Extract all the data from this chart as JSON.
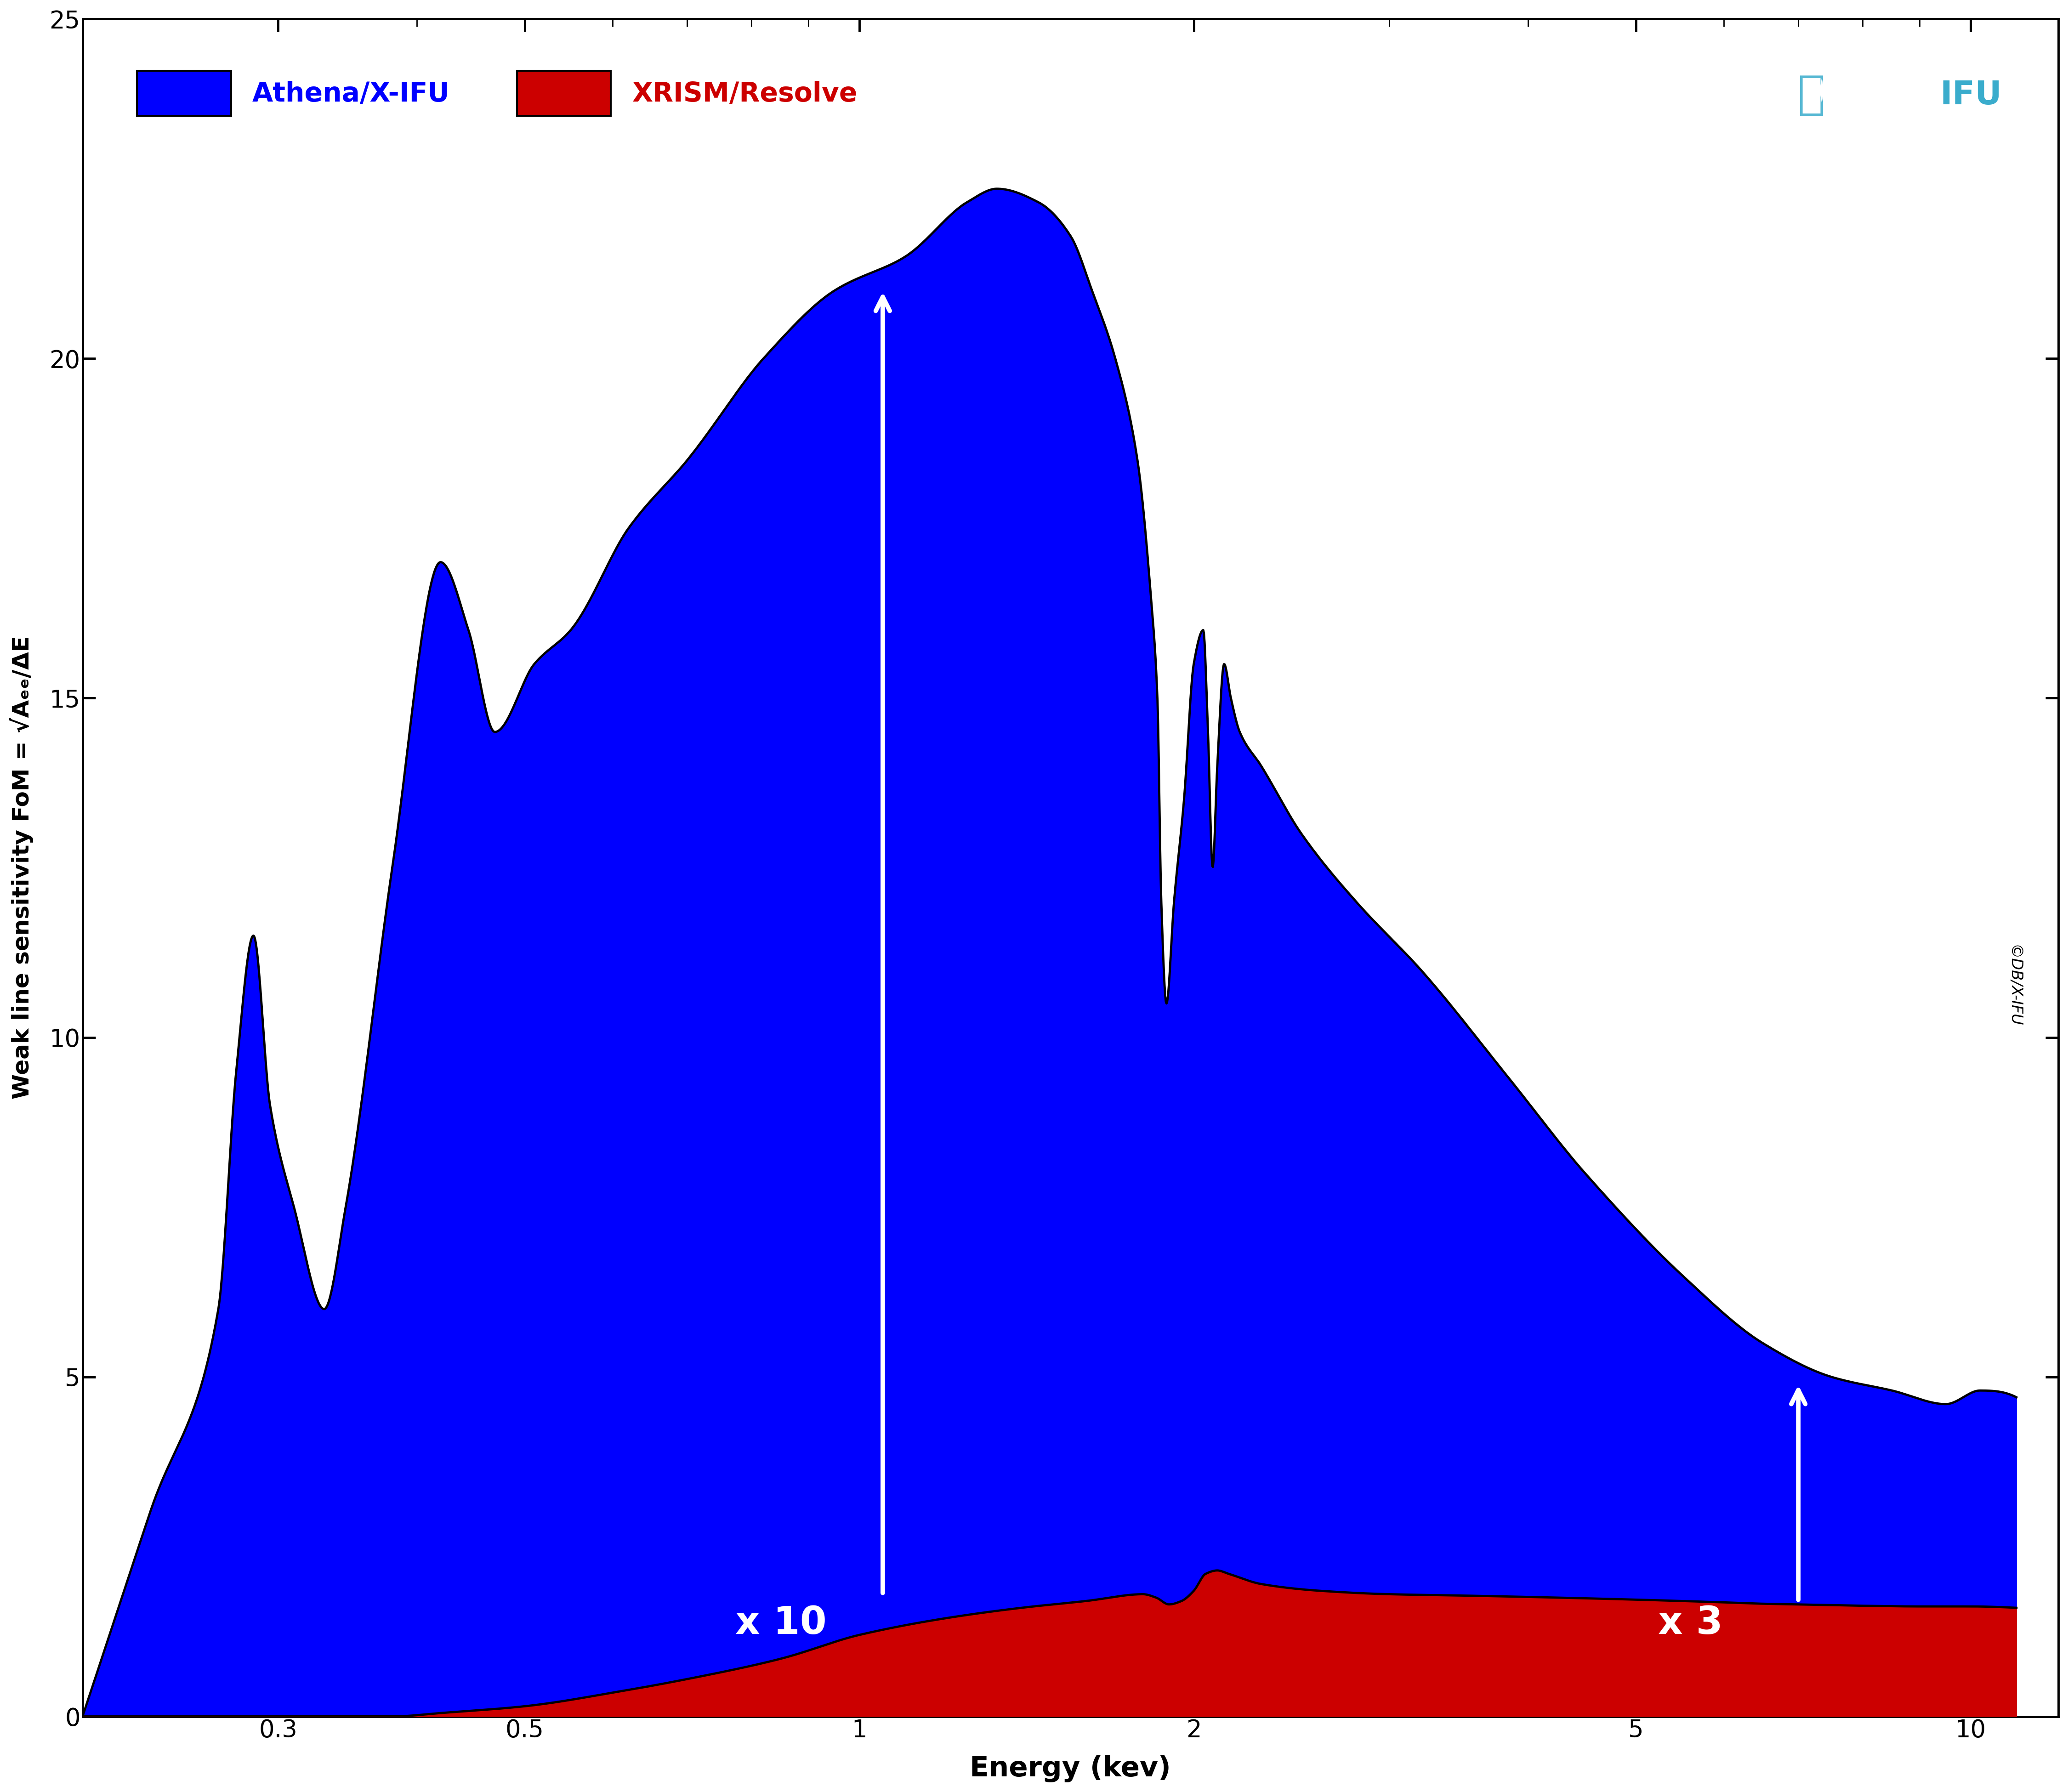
{
  "xlabel": "Energy (kev)",
  "ylabel": "Weak line sensitivity FoM = √Aₑₑ/ΔE",
  "xlim": [
    0.2,
    12.0
  ],
  "ylim": [
    0,
    25
  ],
  "yticks": [
    0,
    5,
    10,
    15,
    20,
    25
  ],
  "xticks": [
    0.3,
    0.5,
    1.0,
    2.0,
    5.0,
    10.0
  ],
  "xticklabels": [
    "0.3",
    "0.5",
    "1",
    "2",
    "5",
    "10"
  ],
  "blue_color": "#0000FF",
  "red_color": "#CC0000",
  "black_outline": "#000000",
  "legend_athena_label": "Athena/X-IFU",
  "legend_xrism_label": "XRISM/Resolve",
  "annotation1_text": "x 10",
  "annotation2_text": "x 3",
  "copyright_text": "©DB/X-IFU",
  "ifu_logo_color": "#3AACCC",
  "tickfontsize": 38,
  "labelfontsize": 44,
  "legendfontsize": 42
}
